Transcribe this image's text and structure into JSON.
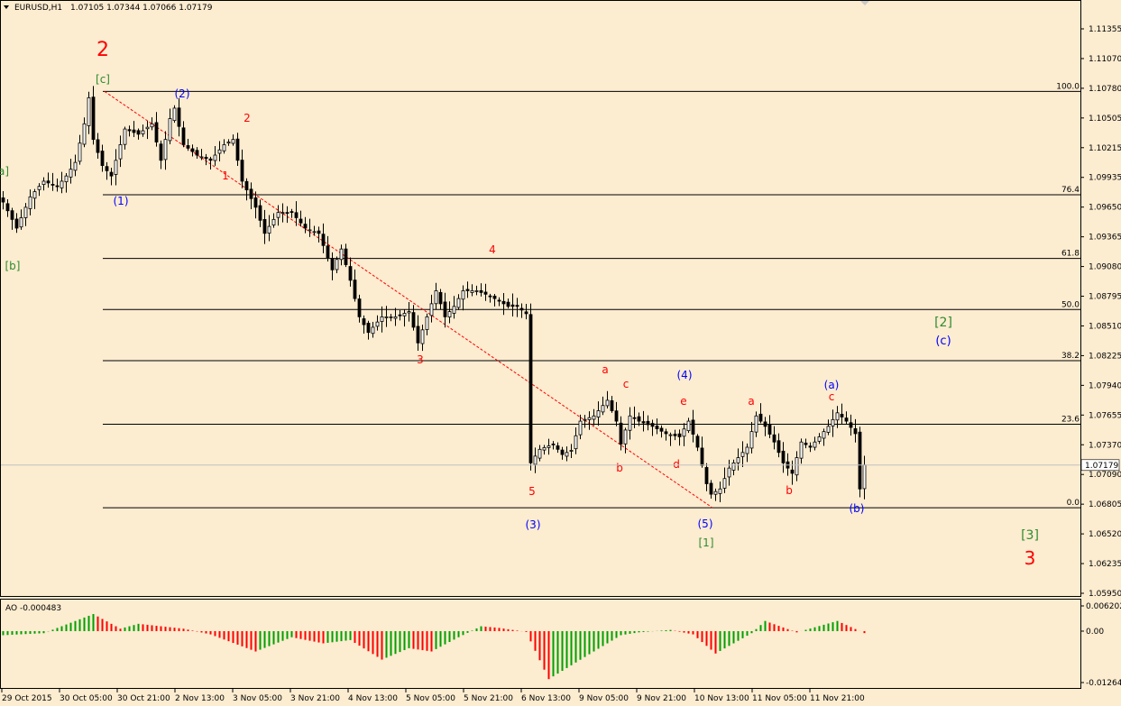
{
  "header": {
    "menu_arrow_icon": "triangle-down-icon",
    "symbol": "EURUSD,H1",
    "ohlc": "1.07105 1.07344 1.07066 1.07179"
  },
  "price_axis": {
    "labels": [
      "1.11355",
      "1.11070",
      "1.10780",
      "1.10505",
      "1.10215",
      "1.09935",
      "1.09650",
      "1.09365",
      "1.09080",
      "1.08795",
      "1.08510",
      "1.08225",
      "1.07940",
      "1.07655",
      "1.07370",
      "1.07090",
      "1.06805",
      "1.06520",
      "1.06235",
      "1.05950"
    ],
    "current_price": "1.07179"
  },
  "time_axis": {
    "labels": [
      "29 Oct 2015",
      "30 Oct 05:00",
      "30 Oct 21:00",
      "2 Nov 13:00",
      "3 Nov 05:00",
      "3 Nov 21:00",
      "4 Nov 13:00",
      "5 Nov 05:00",
      "5 Nov 21:00",
      "6 Nov 13:00",
      "9 Nov 05:00",
      "9 Nov 21:00",
      "10 Nov 13:00",
      "11 Nov 05:00",
      "11 Nov 21:00"
    ]
  },
  "fibonacci": {
    "levels": [
      "100.0",
      "76.4",
      "61.8",
      "50.0",
      "38.2",
      "23.6",
      "0.0"
    ]
  },
  "wave_labels": [
    {
      "text": "2",
      "color": "#ff0000"
    },
    {
      "text": "[c]",
      "color": "#2e8b2e"
    },
    {
      "text": "a]",
      "color": "#2e8b2e"
    },
    {
      "text": "[b]",
      "color": "#2e8b2e"
    },
    {
      "text": "(2)",
      "color": "#0000ff"
    },
    {
      "text": "(1)",
      "color": "#0000ff"
    },
    {
      "text": "2",
      "color": "#ff0000"
    },
    {
      "text": "1",
      "color": "#ff0000"
    },
    {
      "text": "4",
      "color": "#ff0000"
    },
    {
      "text": "3",
      "color": "#ff0000"
    },
    {
      "text": "5",
      "color": "#ff0000"
    },
    {
      "text": "(3)",
      "color": "#0000ff"
    },
    {
      "text": "a",
      "color": "#ff0000"
    },
    {
      "text": "c",
      "color": "#ff0000"
    },
    {
      "text": "b",
      "color": "#ff0000"
    },
    {
      "text": "(4)",
      "color": "#0000ff"
    },
    {
      "text": "e",
      "color": "#ff0000"
    },
    {
      "text": "d",
      "color": "#ff0000"
    },
    {
      "text": "(5)",
      "color": "#0000ff"
    },
    {
      "text": "[1]",
      "color": "#2e8b2e"
    },
    {
      "text": "a",
      "color": "#ff0000"
    },
    {
      "text": "b",
      "color": "#ff0000"
    },
    {
      "text": "(a)",
      "color": "#0000ff"
    },
    {
      "text": "c",
      "color": "#ff0000"
    },
    {
      "text": "(b)",
      "color": "#0000ff"
    },
    {
      "text": "[2]",
      "color": "#2e8b2e"
    },
    {
      "text": "(c)",
      "color": "#0000ff"
    },
    {
      "text": "[3]",
      "color": "#2e8b2e"
    },
    {
      "text": "3",
      "color": "#ff0000"
    }
  ],
  "indicator": {
    "title": "AO -0.000483",
    "axis_labels": [
      "0.006202",
      "0.00",
      "-0.012645"
    ]
  },
  "colors": {
    "background": "#fcecd0",
    "grid_line": "#000000",
    "fib_diagonal": "#ff0000",
    "ao_up": "#00a000",
    "ao_down": "#ff0000",
    "current_price_line": "#c0c0c0"
  },
  "chart_data": [
    {
      "type": "candlestick",
      "symbol": "EURUSD",
      "timeframe": "H1",
      "x_ticks": [
        "29 Oct 2015",
        "30 Oct 05:00",
        "30 Oct 21:00",
        "2 Nov 13:00",
        "3 Nov 05:00",
        "3 Nov 21:00",
        "4 Nov 13:00",
        "5 Nov 05:00",
        "5 Nov 21:00",
        "6 Nov 13:00",
        "9 Nov 05:00",
        "9 Nov 21:00",
        "10 Nov 13:00",
        "11 Nov 05:00",
        "11 Nov 21:00"
      ],
      "ylim": [
        1.0595,
        1.1136
      ],
      "last_price": 1.07179,
      "fib_levels": [
        {
          "level": "100.0",
          "price": 1.1076
        },
        {
          "level": "76.4",
          "price": 1.0977
        },
        {
          "level": "61.8",
          "price": 1.0916
        },
        {
          "level": "50.0",
          "price": 1.0867
        },
        {
          "level": "38.2",
          "price": 1.0818
        },
        {
          "level": "23.6",
          "price": 1.0757
        },
        {
          "level": "0.0",
          "price": 1.0677
        }
      ],
      "close_path": [
        {
          "i": 0,
          "price": 1.097
        },
        {
          "i": 3,
          "price": 1.0945
        },
        {
          "i": 6,
          "price": 1.0975
        },
        {
          "i": 9,
          "price": 1.099
        },
        {
          "i": 12,
          "price": 1.0985
        },
        {
          "i": 14,
          "price": 1.0995
        },
        {
          "i": 16,
          "price": 1.1008
        },
        {
          "i": 18,
          "price": 1.1045
        },
        {
          "i": 19,
          "price": 1.107
        },
        {
          "i": 20,
          "price": 1.103
        },
        {
          "i": 22,
          "price": 1.1005
        },
        {
          "i": 24,
          "price": 1.0995
        },
        {
          "i": 27,
          "price": 1.104
        },
        {
          "i": 30,
          "price": 1.1035
        },
        {
          "i": 33,
          "price": 1.1045
        },
        {
          "i": 35,
          "price": 1.101
        },
        {
          "i": 37,
          "price": 1.105
        },
        {
          "i": 38,
          "price": 1.106
        },
        {
          "i": 40,
          "price": 1.1025
        },
        {
          "i": 43,
          "price": 1.1015
        },
        {
          "i": 46,
          "price": 1.101
        },
        {
          "i": 49,
          "price": 1.1025
        },
        {
          "i": 51,
          "price": 1.103
        },
        {
          "i": 53,
          "price": 1.099
        },
        {
          "i": 56,
          "price": 1.0965
        },
        {
          "i": 58,
          "price": 1.094
        },
        {
          "i": 61,
          "price": 1.096
        },
        {
          "i": 64,
          "price": 1.096
        },
        {
          "i": 67,
          "price": 1.0945
        },
        {
          "i": 70,
          "price": 1.094
        },
        {
          "i": 73,
          "price": 1.0905
        },
        {
          "i": 75,
          "price": 1.0925
        },
        {
          "i": 77,
          "price": 1.0895
        },
        {
          "i": 79,
          "price": 1.086
        },
        {
          "i": 81,
          "price": 1.0845
        },
        {
          "i": 84,
          "price": 1.086
        },
        {
          "i": 87,
          "price": 1.086
        },
        {
          "i": 90,
          "price": 1.0865
        },
        {
          "i": 92,
          "price": 1.0835
        },
        {
          "i": 94,
          "price": 1.086
        },
        {
          "i": 96,
          "price": 1.0885
        },
        {
          "i": 98,
          "price": 1.086
        },
        {
          "i": 100,
          "price": 1.087
        },
        {
          "i": 102,
          "price": 1.0885
        },
        {
          "i": 105,
          "price": 1.0885
        },
        {
          "i": 108,
          "price": 1.088
        },
        {
          "i": 110,
          "price": 1.0875
        },
        {
          "i": 112,
          "price": 1.087
        },
        {
          "i": 114,
          "price": 1.087
        },
        {
          "i": 116,
          "price": 1.0863
        },
        {
          "i": 117,
          "price": 1.072
        },
        {
          "i": 119,
          "price": 1.0733
        },
        {
          "i": 122,
          "price": 1.0738
        },
        {
          "i": 124,
          "price": 1.0728
        },
        {
          "i": 126,
          "price": 1.0732
        },
        {
          "i": 128,
          "price": 1.076
        },
        {
          "i": 131,
          "price": 1.0765
        },
        {
          "i": 134,
          "price": 1.078
        },
        {
          "i": 136,
          "price": 1.076
        },
        {
          "i": 137,
          "price": 1.0738
        },
        {
          "i": 139,
          "price": 1.0765
        },
        {
          "i": 141,
          "price": 1.076
        },
        {
          "i": 144,
          "price": 1.0755
        },
        {
          "i": 147,
          "price": 1.0748
        },
        {
          "i": 150,
          "price": 1.0745
        },
        {
          "i": 152,
          "price": 1.076
        },
        {
          "i": 154,
          "price": 1.0735
        },
        {
          "i": 156,
          "price": 1.07
        },
        {
          "i": 157,
          "price": 1.069
        },
        {
          "i": 159,
          "price": 1.0695
        },
        {
          "i": 161,
          "price": 1.0715
        },
        {
          "i": 163,
          "price": 1.0725
        },
        {
          "i": 165,
          "price": 1.0735
        },
        {
          "i": 167,
          "price": 1.0765
        },
        {
          "i": 169,
          "price": 1.0755
        },
        {
          "i": 171,
          "price": 1.074
        },
        {
          "i": 173,
          "price": 1.072
        },
        {
          "i": 175,
          "price": 1.071
        },
        {
          "i": 177,
          "price": 1.074
        },
        {
          "i": 179,
          "price": 1.0735
        },
        {
          "i": 181,
          "price": 1.0745
        },
        {
          "i": 183,
          "price": 1.0755
        },
        {
          "i": 185,
          "price": 1.0768
        },
        {
          "i": 187,
          "price": 1.076
        },
        {
          "i": 189,
          "price": 1.0748
        },
        {
          "i": 190,
          "price": 1.0695
        },
        {
          "i": 191,
          "price": 1.0718
        }
      ]
    },
    {
      "type": "bar",
      "title": "AO",
      "last_value": -0.000483,
      "ylim": [
        -0.012645,
        0.006202
      ],
      "segments": [
        {
          "start": 0,
          "end": 9,
          "from": -0.001,
          "to": -0.0005
        },
        {
          "start": 9,
          "end": 20,
          "from": -0.0005,
          "to": 0.0042
        },
        {
          "start": 20,
          "end": 26,
          "from": 0.0042,
          "to": 0.0006
        },
        {
          "start": 26,
          "end": 30,
          "from": 0.0006,
          "to": 0.0018
        },
        {
          "start": 30,
          "end": 40,
          "from": 0.0018,
          "to": 0.0006
        },
        {
          "start": 40,
          "end": 46,
          "from": 0.0006,
          "to": -0.0008
        },
        {
          "start": 46,
          "end": 56,
          "from": -0.0008,
          "to": -0.005
        },
        {
          "start": 56,
          "end": 64,
          "from": -0.005,
          "to": -0.0015
        },
        {
          "start": 64,
          "end": 71,
          "from": -0.0015,
          "to": -0.003
        },
        {
          "start": 71,
          "end": 77,
          "from": -0.003,
          "to": -0.0022
        },
        {
          "start": 77,
          "end": 84,
          "from": -0.0022,
          "to": -0.007
        },
        {
          "start": 84,
          "end": 90,
          "from": -0.007,
          "to": -0.0042
        },
        {
          "start": 90,
          "end": 95,
          "from": -0.0042,
          "to": -0.005
        },
        {
          "start": 95,
          "end": 101,
          "from": -0.005,
          "to": -0.0015
        },
        {
          "start": 101,
          "end": 106,
          "from": -0.0015,
          "to": 0.0012
        },
        {
          "start": 106,
          "end": 110,
          "from": 0.0012,
          "to": 0.0008
        },
        {
          "start": 110,
          "end": 116,
          "from": 0.0008,
          "to": -0.0002
        },
        {
          "start": 116,
          "end": 121,
          "from": -0.0002,
          "to": -0.0118
        },
        {
          "start": 121,
          "end": 131,
          "from": -0.0118,
          "to": -0.005
        },
        {
          "start": 131,
          "end": 137,
          "from": -0.005,
          "to": -0.001
        },
        {
          "start": 137,
          "end": 141,
          "from": -0.001,
          "to": -0.0003
        },
        {
          "start": 141,
          "end": 148,
          "from": -0.0003,
          "to": 0.0003
        },
        {
          "start": 148,
          "end": 153,
          "from": 0.0003,
          "to": -0.0008
        },
        {
          "start": 153,
          "end": 158,
          "from": -0.0008,
          "to": -0.0055
        },
        {
          "start": 158,
          "end": 166,
          "from": -0.0055,
          "to": -0.0005
        },
        {
          "start": 166,
          "end": 169,
          "from": -0.0005,
          "to": 0.0025
        },
        {
          "start": 169,
          "end": 176,
          "from": 0.0025,
          "to": -0.0003
        },
        {
          "start": 176,
          "end": 185,
          "from": -0.0003,
          "to": 0.0025
        },
        {
          "start": 185,
          "end": 191,
          "from": 0.0025,
          "to": -0.000483
        }
      ]
    }
  ]
}
